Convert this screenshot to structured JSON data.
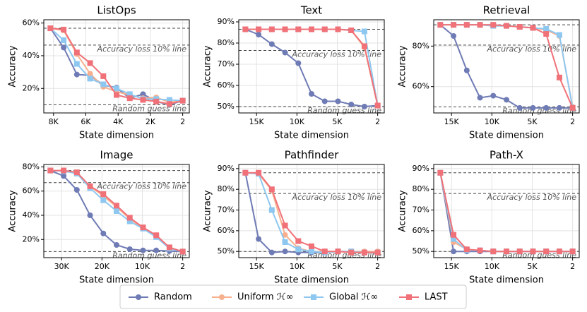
{
  "chart_data": [
    {
      "type": "line",
      "title": "ListOps",
      "xlabel": "State dimension",
      "ylabel": "Accuracy",
      "x": [
        8192,
        7373,
        6554,
        5734,
        4915,
        4096,
        3277,
        2458,
        1638,
        819,
        2
      ],
      "xlim": [
        8602,
        -408
      ],
      "ylim": [
        5,
        62
      ],
      "xticks": [
        {
          "value": 8000,
          "label": "8K"
        },
        {
          "value": 6000,
          "label": "6K"
        },
        {
          "value": 4000,
          "label": "4K"
        },
        {
          "value": 2000,
          "label": "2K"
        },
        2
      ],
      "yticks": [
        {
          "value": 20,
          "label": "20%"
        },
        {
          "value": 40,
          "label": "40%"
        },
        {
          "value": 60,
          "label": "60%"
        }
      ],
      "grid": true,
      "reference_lines": [
        {
          "value": 56.8
        },
        {
          "value": 46.5,
          "label": "Accuracy loss 10% line"
        },
        {
          "value": 10,
          "label": "Random guess line"
        }
      ],
      "series": [
        {
          "name": "Random",
          "color": "#6f7bb5",
          "marker": "circle",
          "values": [
            56.8,
            45,
            28.5,
            28,
            22,
            20.5,
            14,
            16.5,
            12,
            10,
            12.5
          ]
        },
        {
          "name": "Uniform ℋ∞",
          "color": "#f7b08e",
          "marker": "circle",
          "values": [
            56.8,
            55.5,
            41,
            29,
            21,
            18,
            16,
            14,
            14.5,
            11.5,
            12.5
          ]
        },
        {
          "name": "Global ℋ∞",
          "color": "#8ec8f0",
          "marker": "square",
          "values": [
            56.8,
            49.5,
            35,
            26,
            22.5,
            20,
            16.5,
            13.5,
            13.5,
            13,
            12.5
          ]
        },
        {
          "name": "LAST",
          "color": "#f07178",
          "marker": "square",
          "values": [
            56.8,
            56,
            42,
            35.5,
            27.5,
            16,
            14,
            13,
            12,
            10.5,
            12.5
          ]
        }
      ]
    },
    {
      "type": "line",
      "title": "Text",
      "xlabel": "State dimension",
      "ylabel": "Accuracy",
      "x": [
        16384,
        14746,
        13107,
        11469,
        9830,
        8192,
        6554,
        4915,
        3277,
        1638,
        2
      ],
      "xlim": [
        17203,
        -817
      ],
      "ylim": [
        47,
        91
      ],
      "xticks": [
        {
          "value": 15000,
          "label": "15K"
        },
        {
          "value": 10000,
          "label": "10K"
        },
        {
          "value": 5000,
          "label": "5K"
        },
        2
      ],
      "yticks": [
        {
          "value": 50,
          "label": "50%"
        },
        {
          "value": 60,
          "label": "60%"
        },
        {
          "value": 70,
          "label": "70%"
        },
        {
          "value": 80,
          "label": "80%"
        },
        {
          "value": 90,
          "label": "90%"
        }
      ],
      "grid": true,
      "reference_lines": [
        {
          "value": 86.5
        },
        {
          "value": 76.5,
          "label": "Accuracy loss 10% line"
        },
        {
          "value": 50,
          "label": "Random guess line"
        }
      ],
      "series": [
        {
          "name": "Random",
          "color": "#6f7bb5",
          "marker": "circle",
          "values": [
            86.5,
            84,
            79.5,
            75.5,
            70.5,
            56,
            52.5,
            52.5,
            51,
            50,
            50.5
          ]
        },
        {
          "name": "Uniform ℋ∞",
          "color": "#f7b08e",
          "marker": "circle",
          "values": [
            86.5,
            86.5,
            86.5,
            86.5,
            86.5,
            86.5,
            86.5,
            86.5,
            86,
            78,
            50.5
          ]
        },
        {
          "name": "Global ℋ∞",
          "color": "#8ec8f0",
          "marker": "square",
          "values": [
            86.5,
            86.5,
            86.5,
            86.5,
            86.5,
            86.5,
            86.5,
            86.5,
            86,
            85.5,
            50.5
          ]
        },
        {
          "name": "LAST",
          "color": "#f07178",
          "marker": "square",
          "values": [
            86.5,
            86.5,
            86.5,
            86.5,
            86.5,
            86.5,
            86.5,
            86.5,
            86,
            78.5,
            50.5
          ]
        }
      ]
    },
    {
      "type": "line",
      "title": "Retrieval",
      "xlabel": "State dimension",
      "ylabel": "Accuracy",
      "x": [
        16384,
        14746,
        13107,
        11469,
        9830,
        8192,
        6554,
        4915,
        3277,
        1638,
        2
      ],
      "xlim": [
        17203,
        -817
      ],
      "ylim": [
        47,
        93
      ],
      "xticks": [
        {
          "value": 15000,
          "label": "15K"
        },
        {
          "value": 10000,
          "label": "10K"
        },
        {
          "value": 5000,
          "label": "5K"
        },
        2
      ],
      "yticks": [
        {
          "value": 60,
          "label": "60%"
        },
        {
          "value": 80,
          "label": "80%"
        }
      ],
      "grid": true,
      "reference_lines": [
        {
          "value": 90.5
        },
        {
          "value": 80.5,
          "label": "Accuracy loss 10% line"
        },
        {
          "value": 50,
          "label": "Random guess line"
        }
      ],
      "series": [
        {
          "name": "Random",
          "color": "#6f7bb5",
          "marker": "circle",
          "values": [
            90.5,
            85,
            68,
            54.5,
            55.5,
            53.5,
            49.5,
            49.5,
            49.5,
            49.5,
            49.5
          ]
        },
        {
          "name": "Uniform ℋ∞",
          "color": "#f7b08e",
          "marker": "circle",
          "values": [
            90.5,
            90.5,
            90.5,
            90.5,
            90,
            90,
            89.5,
            89,
            88,
            85,
            50
          ]
        },
        {
          "name": "Global ℋ∞",
          "color": "#8ec8f0",
          "marker": "square",
          "values": [
            90.5,
            90.5,
            90.5,
            90.5,
            90,
            90,
            89.5,
            89,
            88.5,
            85.5,
            49.5
          ]
        },
        {
          "name": "LAST",
          "color": "#f07178",
          "marker": "square",
          "values": [
            90.5,
            90.5,
            90.5,
            90.5,
            90.5,
            90,
            89.5,
            89,
            86,
            64.5,
            49.5
          ]
        }
      ]
    },
    {
      "type": "line",
      "title": "Image",
      "xlabel": "State dimension",
      "ylabel": "Accuracy",
      "x": [
        32768,
        29491,
        26214,
        22938,
        19661,
        16384,
        13107,
        9830,
        6554,
        3277,
        2
      ],
      "xlim": [
        34406,
        -1636
      ],
      "ylim": [
        5,
        82
      ],
      "xticks": [
        {
          "value": 30000,
          "label": "30K"
        },
        {
          "value": 20000,
          "label": "20K"
        },
        {
          "value": 10000,
          "label": "10K"
        },
        2
      ],
      "yticks": [
        {
          "value": 20,
          "label": "20%"
        },
        {
          "value": 40,
          "label": "40%"
        },
        {
          "value": 60,
          "label": "60%"
        },
        {
          "value": 80,
          "label": "80%"
        }
      ],
      "grid": true,
      "reference_lines": [
        {
          "value": 77
        },
        {
          "value": 67,
          "label": "Accuracy loss 10% line"
        },
        {
          "value": 10,
          "label": "Random guess line"
        }
      ],
      "series": [
        {
          "name": "Random",
          "color": "#6f7bb5",
          "marker": "circle",
          "values": [
            77,
            72.5,
            61,
            40,
            25,
            15.5,
            12,
            11,
            11,
            10.5,
            10
          ]
        },
        {
          "name": "Uniform ℋ∞",
          "color": "#f7b08e",
          "marker": "circle",
          "values": [
            77,
            77,
            75,
            64,
            56,
            47,
            37,
            29.5,
            23.5,
            13,
            10
          ]
        },
        {
          "name": "Global ℋ∞",
          "color": "#8ec8f0",
          "marker": "square",
          "values": [
            77,
            76.5,
            74.5,
            62.5,
            52.5,
            43.5,
            35,
            29,
            22,
            12.5,
            10
          ]
        },
        {
          "name": "LAST",
          "color": "#f07178",
          "marker": "square",
          "values": [
            77,
            77,
            75.5,
            64,
            57.5,
            48,
            38,
            30,
            23.5,
            13.5,
            10
          ]
        }
      ]
    },
    {
      "type": "line",
      "title": "Pathfinder",
      "xlabel": "State dimension",
      "ylabel": "Accuracy",
      "x": [
        16384,
        14746,
        13107,
        11469,
        9830,
        8192,
        6554,
        4915,
        3277,
        1638,
        2
      ],
      "xlim": [
        17203,
        -817
      ],
      "ylim": [
        47,
        92
      ],
      "xticks": [
        {
          "value": 15000,
          "label": "15K"
        },
        {
          "value": 10000,
          "label": "10K"
        },
        {
          "value": 5000,
          "label": "5K"
        },
        2
      ],
      "yticks": [
        {
          "value": 50,
          "label": "50%"
        },
        {
          "value": 60,
          "label": "60%"
        },
        {
          "value": 70,
          "label": "70%"
        },
        {
          "value": 80,
          "label": "80%"
        },
        {
          "value": 90,
          "label": "90%"
        }
      ],
      "grid": true,
      "reference_lines": [
        {
          "value": 88
        },
        {
          "value": 78,
          "label": "Accuracy loss 10% line"
        },
        {
          "value": 50,
          "label": "Random guess line"
        }
      ],
      "series": [
        {
          "name": "Random",
          "color": "#6f7bb5",
          "marker": "circle",
          "values": [
            88,
            56,
            49.5,
            50,
            49.5,
            49.5,
            49.5,
            50,
            50,
            49.5,
            49.5
          ]
        },
        {
          "name": "Uniform ℋ∞",
          "color": "#f7b08e",
          "marker": "circle",
          "values": [
            88,
            87.5,
            79.5,
            58,
            51.5,
            50,
            50,
            50,
            50,
            50,
            50
          ]
        },
        {
          "name": "Global ℋ∞",
          "color": "#8ec8f0",
          "marker": "square",
          "values": [
            88,
            87.5,
            70,
            54.5,
            51,
            50,
            49.5,
            50,
            50,
            49.5,
            49.5
          ]
        },
        {
          "name": "LAST",
          "color": "#f07178",
          "marker": "square",
          "values": [
            88,
            88,
            80,
            62.5,
            55,
            52.5,
            50,
            50,
            49.5,
            49.5,
            49.5
          ]
        }
      ]
    },
    {
      "type": "line",
      "title": "Path-X",
      "xlabel": "State dimension",
      "ylabel": "Accuracy",
      "x": [
        16384,
        14746,
        13107,
        11469,
        9830,
        8192,
        6554,
        4915,
        3277,
        1638,
        2
      ],
      "xlim": [
        17203,
        -817
      ],
      "ylim": [
        47,
        92
      ],
      "xticks": [
        {
          "value": 15000,
          "label": "15K"
        },
        {
          "value": 10000,
          "label": "10K"
        },
        {
          "value": 5000,
          "label": "5K"
        },
        2
      ],
      "yticks": [
        {
          "value": 50,
          "label": "50%"
        },
        {
          "value": 60,
          "label": "60%"
        },
        {
          "value": 70,
          "label": "70%"
        },
        {
          "value": 80,
          "label": "80%"
        },
        {
          "value": 90,
          "label": "90%"
        }
      ],
      "grid": true,
      "reference_lines": [
        {
          "value": 88
        },
        {
          "value": 78,
          "label": "Accuracy loss 10% line"
        },
        {
          "value": 50,
          "label": "Random guess line"
        }
      ],
      "series": [
        {
          "name": "Random",
          "color": "#6f7bb5",
          "marker": "circle",
          "values": [
            88,
            50,
            50,
            50,
            50,
            50,
            50,
            50,
            50,
            50,
            50
          ]
        },
        {
          "name": "Uniform ℋ∞",
          "color": "#f7b08e",
          "marker": "circle",
          "values": [
            88,
            54.5,
            51,
            50.5,
            50,
            50,
            50,
            50,
            50,
            50,
            50
          ]
        },
        {
          "name": "Global ℋ∞",
          "color": "#8ec8f0",
          "marker": "square",
          "values": [
            88,
            56,
            50.5,
            50.5,
            50,
            50,
            50,
            50,
            50,
            50,
            50
          ]
        },
        {
          "name": "LAST",
          "color": "#f07178",
          "marker": "square",
          "values": [
            88,
            58,
            51,
            50.5,
            50,
            50,
            50,
            50,
            50,
            50,
            50
          ]
        }
      ]
    }
  ]
}
